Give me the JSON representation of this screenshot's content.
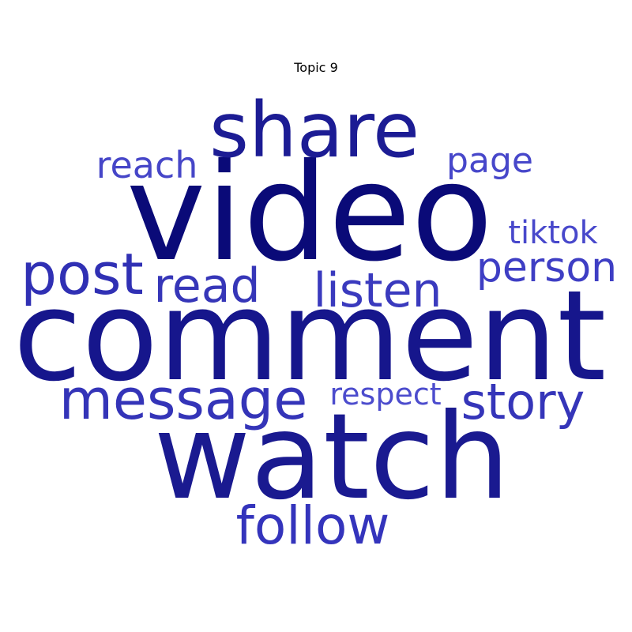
{
  "chart_data": {
    "type": "wordcloud",
    "title": "Topic 9",
    "words": [
      {
        "text": "video",
        "weight": 100,
        "color": "#0a0a78"
      },
      {
        "text": "comment",
        "weight": 95,
        "color": "#16168c"
      },
      {
        "text": "watch",
        "weight": 90,
        "color": "#1a1a90"
      },
      {
        "text": "share",
        "weight": 68,
        "color": "#1c1c94"
      },
      {
        "text": "message",
        "weight": 52,
        "color": "#3434b8"
      },
      {
        "text": "post",
        "weight": 50,
        "color": "#3030b4"
      },
      {
        "text": "follow",
        "weight": 48,
        "color": "#3434bc"
      },
      {
        "text": "story",
        "weight": 44,
        "color": "#3535b9"
      },
      {
        "text": "listen",
        "weight": 43,
        "color": "#3a3abe"
      },
      {
        "text": "read",
        "weight": 41,
        "color": "#3636b8"
      },
      {
        "text": "person",
        "weight": 36,
        "color": "#3e3ec4"
      },
      {
        "text": "reach",
        "weight": 33,
        "color": "#4646c8"
      },
      {
        "text": "page",
        "weight": 31,
        "color": "#4747ca"
      },
      {
        "text": "tiktok",
        "weight": 29,
        "color": "#4848cb"
      },
      {
        "text": "respect",
        "weight": 27,
        "color": "#4c4ccd"
      }
    ]
  }
}
